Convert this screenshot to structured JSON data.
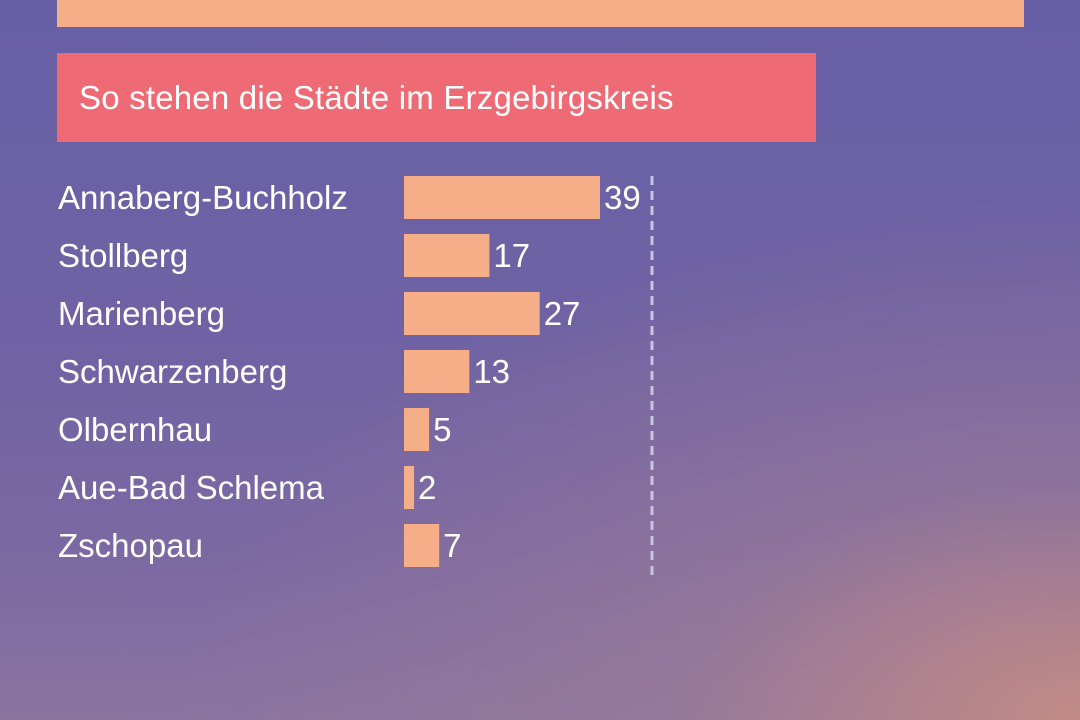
{
  "top_band_color": "#f5ae88",
  "title": "So stehen die Städte im Erzgebirgskreis",
  "colors": {
    "bar": "#f5ae88",
    "title_background": "#ee6b76",
    "reference_line": "#c9c3e0",
    "text": "#ffffff"
  },
  "chart_data": {
    "type": "bar",
    "orientation": "horizontal",
    "title": "So stehen die Städte im Erzgebirgskreis",
    "categories": [
      "Annaberg-Buchholz",
      "Stollberg",
      "Marienberg",
      "Schwarzenberg",
      "Olbernhau",
      "Aue-Bad Schlema",
      "Zschopau"
    ],
    "values": [
      39,
      17,
      27,
      13,
      5,
      2,
      7
    ],
    "xlim": [
      0,
      50
    ],
    "reference_line": {
      "style": "dashed"
    },
    "grid": false,
    "legend": "none",
    "xlabel": "",
    "ylabel": ""
  }
}
